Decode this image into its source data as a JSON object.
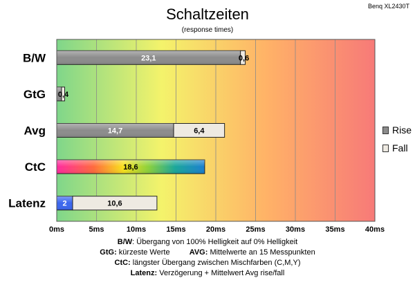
{
  "corner_label": "Benq XL2430T",
  "chart_data": {
    "type": "bar",
    "orientation": "horizontal",
    "stacked": true,
    "title": "Schaltzeiten",
    "subtitle": "(response times)",
    "categories": [
      "B/W",
      "GtG",
      "Avg",
      "CtC",
      "Latenz"
    ],
    "series": [
      {
        "name": "Rise",
        "values": [
          23.1,
          0.6,
          14.7,
          18.6,
          2
        ],
        "labels": [
          "23,1",
          "",
          "14,7",
          "18,6",
          "2"
        ]
      },
      {
        "name": "Fall",
        "values": [
          0.6,
          0.4,
          6.4,
          0,
          10.6
        ],
        "labels": [
          "0,6",
          "0,4",
          "6,4",
          "",
          "10,6"
        ]
      }
    ],
    "xlim": [
      0,
      40
    ],
    "xticks": [
      0,
      5,
      10,
      15,
      20,
      25,
      30,
      35,
      40
    ],
    "xticklabels": [
      "0ms",
      "5ms",
      "10ms",
      "15ms",
      "20ms",
      "25ms",
      "30ms",
      "35ms",
      "40ms"
    ],
    "grid": true,
    "legend": "right",
    "colors": {
      "rise": "#8c8c8c",
      "fall": "#eeeae2",
      "latenz_rise": "#3b66ee",
      "background_gradient": [
        "#7fd68a",
        "#f4f36b",
        "#ffb267",
        "#f77a78"
      ]
    }
  },
  "footer": {
    "line1_label": "B/W",
    "line1_text": ":  Übergang von 100% Helligkeit auf 0% Helligkeit",
    "line2a_label": "GtG:",
    "line2a_text": " kürzeste  Werte",
    "line2b_label": "AVG:",
    "line2b_text": " Mittelwerte  an 15 Messpunkten",
    "line3_label": "CtC:",
    "line3_text": " längster Übergang  zwischen Mischfarben (C,M,Y)",
    "line4_label": "Latenz:",
    "line4_text": " Verzögerung  + Mittelwert Avg rise/fall"
  }
}
